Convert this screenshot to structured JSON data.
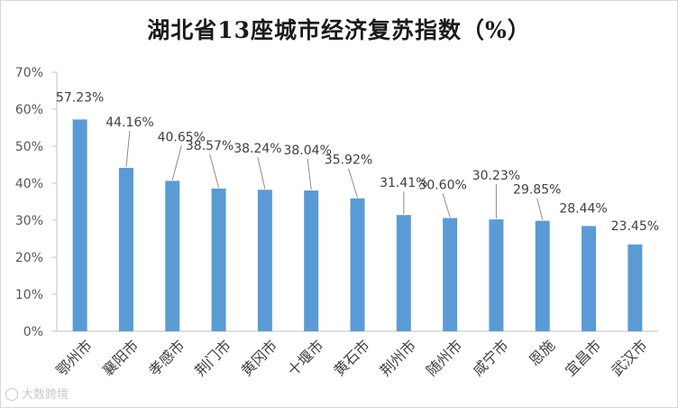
{
  "chart_data": {
    "type": "bar",
    "title": "湖北省13座城市经济复苏指数（%）",
    "categories": [
      "鄂州市",
      "襄阳市",
      "孝感市",
      "荆门市",
      "黄冈市",
      "十堰市",
      "黄石市",
      "荆州市",
      "随州市",
      "咸宁市",
      "恩施",
      "宜昌市",
      "武汉市"
    ],
    "values": [
      57.23,
      44.16,
      40.65,
      38.57,
      38.24,
      38.04,
      35.92,
      31.41,
      30.6,
      30.23,
      29.85,
      28.44,
      23.45
    ],
    "data_labels": [
      "57.23%",
      "44.16%",
      "40.65%",
      "38.57%",
      "38.24%",
      "38.04%",
      "35.92%",
      "31.41%",
      "30.60%",
      "30.23%",
      "29.85%",
      "28.44%",
      "23.45%"
    ],
    "y_ticks": [
      "0%",
      "10%",
      "20%",
      "30%",
      "40%",
      "50%",
      "60%",
      "70%"
    ],
    "ylim": [
      0,
      70
    ],
    "grid": false,
    "legend": "none",
    "bar_color": "#5b9bd5"
  },
  "watermark": {
    "text": "大数跨境"
  }
}
